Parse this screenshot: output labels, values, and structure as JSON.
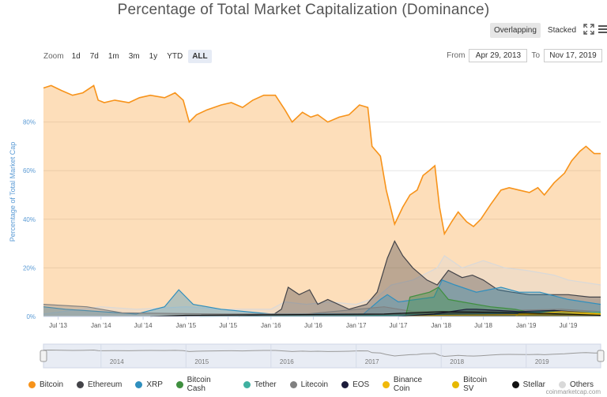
{
  "title": "Percentage of Total Market Capitalization (Dominance)",
  "view_toggle": {
    "overlapping": "Overlapping",
    "stacked": "Stacked",
    "fullscreen_icon": "fullscreen-icon",
    "menu_icon": "menu-icon"
  },
  "zoom": {
    "label": "Zoom",
    "options": [
      "1d",
      "7d",
      "1m",
      "3m",
      "1y",
      "YTD",
      "ALL"
    ],
    "active": "ALL"
  },
  "range": {
    "from_label": "From",
    "from_value": "Apr 29, 2013",
    "to_label": "To",
    "to_value": "Nov 17, 2019"
  },
  "credit": "coinmarketcap.com",
  "colors": {
    "Bitcoin": "#f7931a",
    "Ethereum": "#434348",
    "XRP": "#2f8fbe",
    "Bitcoin Cash": "#3f8f3f",
    "Tether": "#3fb0a0",
    "Litecoin": "#808080",
    "EOS": "#1b1b3a",
    "Binance Coin": "#f0b90b",
    "Bitcoin SV": "#e6b800",
    "Stellar": "#111111",
    "Others": "#d9d9d9"
  },
  "chart_data": {
    "type": "area",
    "ylabel": "Percentage of Total Market Cap",
    "ylim": [
      0,
      100
    ],
    "yticks": [
      "0%",
      "20%",
      "40%",
      "60%",
      "80%"
    ],
    "ytick_values": [
      0,
      20,
      40,
      60,
      80
    ],
    "x_range": [
      "2013-04-29",
      "2019-11-17"
    ],
    "xticks": [
      "Jul '13",
      "Jan '14",
      "Jul '14",
      "Jan '15",
      "Jul '15",
      "Jan '16",
      "Jul '16",
      "Jan '17",
      "Jul '17",
      "Jan '18",
      "Jul '18",
      "Jan '19",
      "Jul '19"
    ],
    "xtick_dates": [
      "2013-07-01",
      "2014-01-01",
      "2014-07-01",
      "2015-01-01",
      "2015-07-01",
      "2016-01-01",
      "2016-07-01",
      "2017-01-01",
      "2017-07-01",
      "2018-01-01",
      "2018-07-01",
      "2019-01-01",
      "2019-07-01"
    ],
    "navigator_labels": [
      "2014",
      "2015",
      "2016",
      "2017",
      "2018",
      "2019"
    ],
    "navigator_dates": [
      "2014-01-01",
      "2015-01-01",
      "2016-01-01",
      "2017-01-01",
      "2018-01-01",
      "2019-01-01"
    ],
    "grid": true,
    "legend_position": "bottom",
    "series": [
      {
        "name": "Bitcoin",
        "points": [
          [
            "2013-04-29",
            94
          ],
          [
            "2013-06-01",
            95
          ],
          [
            "2013-07-15",
            93
          ],
          [
            "2013-09-01",
            91
          ],
          [
            "2013-10-15",
            92
          ],
          [
            "2013-12-01",
            95
          ],
          [
            "2013-12-20",
            89
          ],
          [
            "2014-01-15",
            88
          ],
          [
            "2014-03-01",
            89
          ],
          [
            "2014-05-01",
            88
          ],
          [
            "2014-06-15",
            90
          ],
          [
            "2014-08-01",
            91
          ],
          [
            "2014-10-01",
            90
          ],
          [
            "2014-11-15",
            92
          ],
          [
            "2014-12-20",
            89
          ],
          [
            "2015-01-15",
            80
          ],
          [
            "2015-02-15",
            83
          ],
          [
            "2015-04-01",
            85
          ],
          [
            "2015-06-01",
            87
          ],
          [
            "2015-07-15",
            88
          ],
          [
            "2015-09-01",
            86
          ],
          [
            "2015-10-15",
            89
          ],
          [
            "2015-12-01",
            91
          ],
          [
            "2016-01-20",
            91
          ],
          [
            "2016-03-01",
            85
          ],
          [
            "2016-04-01",
            80
          ],
          [
            "2016-05-15",
            84
          ],
          [
            "2016-06-20",
            82
          ],
          [
            "2016-07-20",
            83
          ],
          [
            "2016-09-01",
            80
          ],
          [
            "2016-10-20",
            82
          ],
          [
            "2016-12-01",
            83
          ],
          [
            "2017-01-15",
            87
          ],
          [
            "2017-02-20",
            86
          ],
          [
            "2017-03-10",
            70
          ],
          [
            "2017-04-15",
            66
          ],
          [
            "2017-05-10",
            52
          ],
          [
            "2017-06-15",
            38
          ],
          [
            "2017-07-20",
            45
          ],
          [
            "2017-08-20",
            50
          ],
          [
            "2017-09-20",
            52
          ],
          [
            "2017-10-15",
            58
          ],
          [
            "2017-11-10",
            60
          ],
          [
            "2017-12-05",
            62
          ],
          [
            "2017-12-25",
            45
          ],
          [
            "2018-01-15",
            34
          ],
          [
            "2018-02-15",
            39
          ],
          [
            "2018-03-15",
            43
          ],
          [
            "2018-04-20",
            39
          ],
          [
            "2018-05-20",
            37
          ],
          [
            "2018-06-20",
            40
          ],
          [
            "2018-08-01",
            46
          ],
          [
            "2018-09-15",
            52
          ],
          [
            "2018-10-20",
            53
          ],
          [
            "2018-12-01",
            52
          ],
          [
            "2019-01-15",
            51
          ],
          [
            "2019-02-20",
            53
          ],
          [
            "2019-03-20",
            50
          ],
          [
            "2019-05-01",
            55
          ],
          [
            "2019-06-15",
            59
          ],
          [
            "2019-07-15",
            64
          ],
          [
            "2019-08-20",
            68
          ],
          [
            "2019-09-15",
            70
          ],
          [
            "2019-10-20",
            67
          ],
          [
            "2019-11-17",
            67
          ]
        ]
      },
      {
        "name": "Ethereum",
        "points": [
          [
            "2015-08-15",
            0
          ],
          [
            "2016-01-15",
            1
          ],
          [
            "2016-02-15",
            3
          ],
          [
            "2016-03-15",
            12
          ],
          [
            "2016-05-01",
            9
          ],
          [
            "2016-06-15",
            11
          ],
          [
            "2016-07-20",
            5
          ],
          [
            "2016-09-01",
            7
          ],
          [
            "2016-12-01",
            3
          ],
          [
            "2017-02-15",
            5
          ],
          [
            "2017-04-01",
            10
          ],
          [
            "2017-05-15",
            24
          ],
          [
            "2017-06-15",
            31
          ],
          [
            "2017-07-20",
            25
          ],
          [
            "2017-09-01",
            20
          ],
          [
            "2017-11-01",
            15
          ],
          [
            "2017-12-15",
            13
          ],
          [
            "2018-02-01",
            19
          ],
          [
            "2018-04-01",
            16
          ],
          [
            "2018-05-15",
            17
          ],
          [
            "2018-07-01",
            15
          ],
          [
            "2018-09-01",
            11
          ],
          [
            "2018-11-01",
            10
          ],
          [
            "2019-01-15",
            9
          ],
          [
            "2019-04-01",
            9
          ],
          [
            "2019-07-01",
            9
          ],
          [
            "2019-10-01",
            8
          ],
          [
            "2019-11-17",
            8
          ]
        ]
      },
      {
        "name": "XRP",
        "points": [
          [
            "2013-04-29",
            4
          ],
          [
            "2013-08-01",
            3
          ],
          [
            "2014-01-01",
            2
          ],
          [
            "2014-06-01",
            1
          ],
          [
            "2014-10-01",
            4
          ],
          [
            "2014-12-01",
            11
          ],
          [
            "2015-02-01",
            5
          ],
          [
            "2015-06-01",
            3
          ],
          [
            "2016-01-01",
            1
          ],
          [
            "2016-06-01",
            1
          ],
          [
            "2017-02-01",
            1
          ],
          [
            "2017-04-15",
            7
          ],
          [
            "2017-05-15",
            9
          ],
          [
            "2017-07-01",
            6
          ],
          [
            "2017-12-01",
            8
          ],
          [
            "2018-01-05",
            15
          ],
          [
            "2018-03-01",
            13
          ],
          [
            "2018-06-01",
            10
          ],
          [
            "2018-09-15",
            12
          ],
          [
            "2018-12-01",
            10
          ],
          [
            "2019-03-01",
            10
          ],
          [
            "2019-07-01",
            7
          ],
          [
            "2019-11-17",
            5
          ]
        ]
      },
      {
        "name": "Bitcoin Cash",
        "points": [
          [
            "2017-08-01",
            0
          ],
          [
            "2017-08-20",
            8
          ],
          [
            "2017-11-12",
            10
          ],
          [
            "2017-12-20",
            12
          ],
          [
            "2018-02-01",
            7
          ],
          [
            "2018-04-01",
            6
          ],
          [
            "2018-08-01",
            4
          ],
          [
            "2018-11-15",
            3
          ],
          [
            "2019-01-01",
            2
          ],
          [
            "2019-07-01",
            2
          ],
          [
            "2019-11-17",
            1.5
          ]
        ]
      },
      {
        "name": "Tether",
        "points": [
          [
            "2015-03-01",
            0
          ],
          [
            "2017-01-01",
            0.3
          ],
          [
            "2018-01-01",
            0.8
          ],
          [
            "2018-06-01",
            1
          ],
          [
            "2019-01-01",
            2
          ],
          [
            "2019-06-01",
            1.5
          ],
          [
            "2019-11-17",
            1.8
          ]
        ]
      },
      {
        "name": "Litecoin",
        "points": [
          [
            "2013-04-29",
            5
          ],
          [
            "2013-11-01",
            4
          ],
          [
            "2014-01-01",
            3
          ],
          [
            "2014-04-01",
            1.5
          ],
          [
            "2015-06-01",
            1
          ],
          [
            "2016-06-01",
            1
          ],
          [
            "2017-05-01",
            4
          ],
          [
            "2017-09-01",
            2
          ],
          [
            "2017-12-15",
            2
          ],
          [
            "2018-04-01",
            2
          ],
          [
            "2019-06-01",
            3
          ],
          [
            "2019-11-17",
            2
          ]
        ]
      },
      {
        "name": "EOS",
        "points": [
          [
            "2017-07-01",
            0
          ],
          [
            "2017-12-01",
            1
          ],
          [
            "2018-04-20",
            3
          ],
          [
            "2018-06-01",
            3
          ],
          [
            "2018-12-01",
            2
          ],
          [
            "2019-05-01",
            2.5
          ],
          [
            "2019-11-17",
            1.2
          ]
        ]
      },
      {
        "name": "Binance Coin",
        "points": [
          [
            "2017-08-01",
            0
          ],
          [
            "2018-01-01",
            0.5
          ],
          [
            "2019-01-01",
            0.8
          ],
          [
            "2019-06-01",
            2
          ],
          [
            "2019-11-17",
            1.2
          ]
        ]
      },
      {
        "name": "Bitcoin SV",
        "points": [
          [
            "2018-11-15",
            0
          ],
          [
            "2018-12-01",
            1
          ],
          [
            "2019-06-01",
            1.2
          ],
          [
            "2019-11-17",
            0.9
          ]
        ]
      },
      {
        "name": "Stellar",
        "points": [
          [
            "2014-08-01",
            0
          ],
          [
            "2015-01-01",
            0.5
          ],
          [
            "2017-05-01",
            1
          ],
          [
            "2018-01-01",
            2
          ],
          [
            "2019-01-01",
            1.5
          ],
          [
            "2019-11-17",
            0.5
          ]
        ]
      },
      {
        "name": "Others",
        "points": [
          [
            "2013-04-29",
            1
          ],
          [
            "2014-01-01",
            4
          ],
          [
            "2014-06-01",
            3
          ],
          [
            "2015-01-01",
            4
          ],
          [
            "2015-06-01",
            3
          ],
          [
            "2016-01-01",
            3
          ],
          [
            "2016-03-01",
            6
          ],
          [
            "2016-06-01",
            5
          ],
          [
            "2016-09-01",
            6
          ],
          [
            "2017-01-01",
            5
          ],
          [
            "2017-04-01",
            8
          ],
          [
            "2017-06-01",
            13
          ],
          [
            "2017-09-01",
            15
          ],
          [
            "2017-12-15",
            20
          ],
          [
            "2018-01-15",
            25
          ],
          [
            "2018-04-01",
            20
          ],
          [
            "2018-07-01",
            23
          ],
          [
            "2018-10-01",
            20
          ],
          [
            "2019-01-01",
            19
          ],
          [
            "2019-05-01",
            17
          ],
          [
            "2019-07-01",
            15
          ],
          [
            "2019-11-17",
            13
          ]
        ]
      }
    ]
  }
}
